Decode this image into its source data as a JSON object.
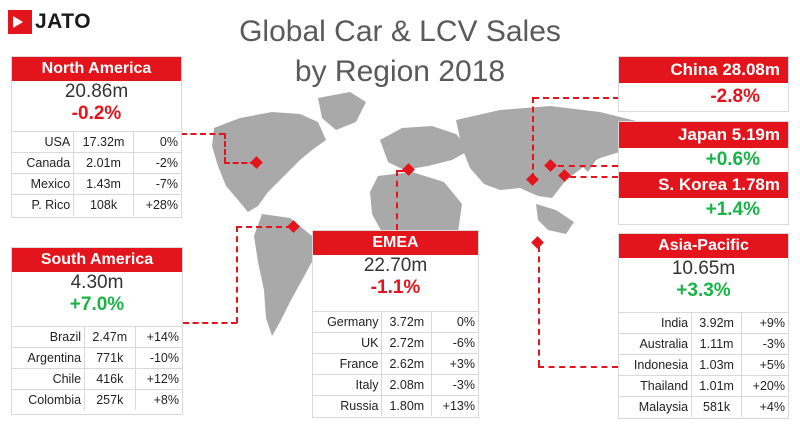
{
  "brand": "JATO",
  "title_line1": "Global Car & LCV Sales",
  "title_line2": "by Region 2018",
  "colors": {
    "accent": "#e3141b",
    "positive": "#18b447",
    "map": "#a9a9a9"
  },
  "north_america": {
    "name": "North America",
    "total": "20.86m",
    "change": "-0.2%",
    "rows": [
      {
        "country": "USA",
        "volume": "17.32m",
        "change": "0%"
      },
      {
        "country": "Canada",
        "volume": "2.01m",
        "change": "-2%"
      },
      {
        "country": "Mexico",
        "volume": "1.43m",
        "change": "-7%"
      },
      {
        "country": "P. Rico",
        "volume": "108k",
        "change": "+28%"
      }
    ]
  },
  "south_america": {
    "name": "South America",
    "total": "4.30m",
    "change": "+7.0%",
    "rows": [
      {
        "country": "Brazil",
        "volume": "2.47m",
        "change": "+14%"
      },
      {
        "country": "Argentina",
        "volume": "771k",
        "change": "-10%"
      },
      {
        "country": "Chile",
        "volume": "416k",
        "change": "+12%"
      },
      {
        "country": "Colombia",
        "volume": "257k",
        "change": "+8%"
      }
    ]
  },
  "emea": {
    "name": "EMEA",
    "total": "22.70m",
    "change": "-1.1%",
    "rows": [
      {
        "country": "Germany",
        "volume": "3.72m",
        "change": "0%"
      },
      {
        "country": "UK",
        "volume": "2.72m",
        "change": "-6%"
      },
      {
        "country": "France",
        "volume": "2.62m",
        "change": "+3%"
      },
      {
        "country": "Italy",
        "volume": "2.08m",
        "change": "-3%"
      },
      {
        "country": "Russia",
        "volume": "1.80m",
        "change": "+13%"
      }
    ]
  },
  "china": {
    "label": "China 28.08m",
    "change": "-2.8%"
  },
  "japan": {
    "label": "Japan 5.19m",
    "change": "+0.6%"
  },
  "south_korea": {
    "label": "S. Korea 1.78m",
    "change": "+1.4%"
  },
  "asia_pacific": {
    "name": "Asia-Pacific",
    "total": "10.65m",
    "change": "+3.3%",
    "rows": [
      {
        "country": "India",
        "volume": "3.92m",
        "change": "+9%"
      },
      {
        "country": "Australia",
        "volume": "1.11m",
        "change": "-3%"
      },
      {
        "country": "Indonesia",
        "volume": "1.03m",
        "change": "+5%"
      },
      {
        "country": "Thailand",
        "volume": "1.01m",
        "change": "+20%"
      },
      {
        "country": "Malaysia",
        "volume": "581k",
        "change": "+4%"
      }
    ]
  }
}
